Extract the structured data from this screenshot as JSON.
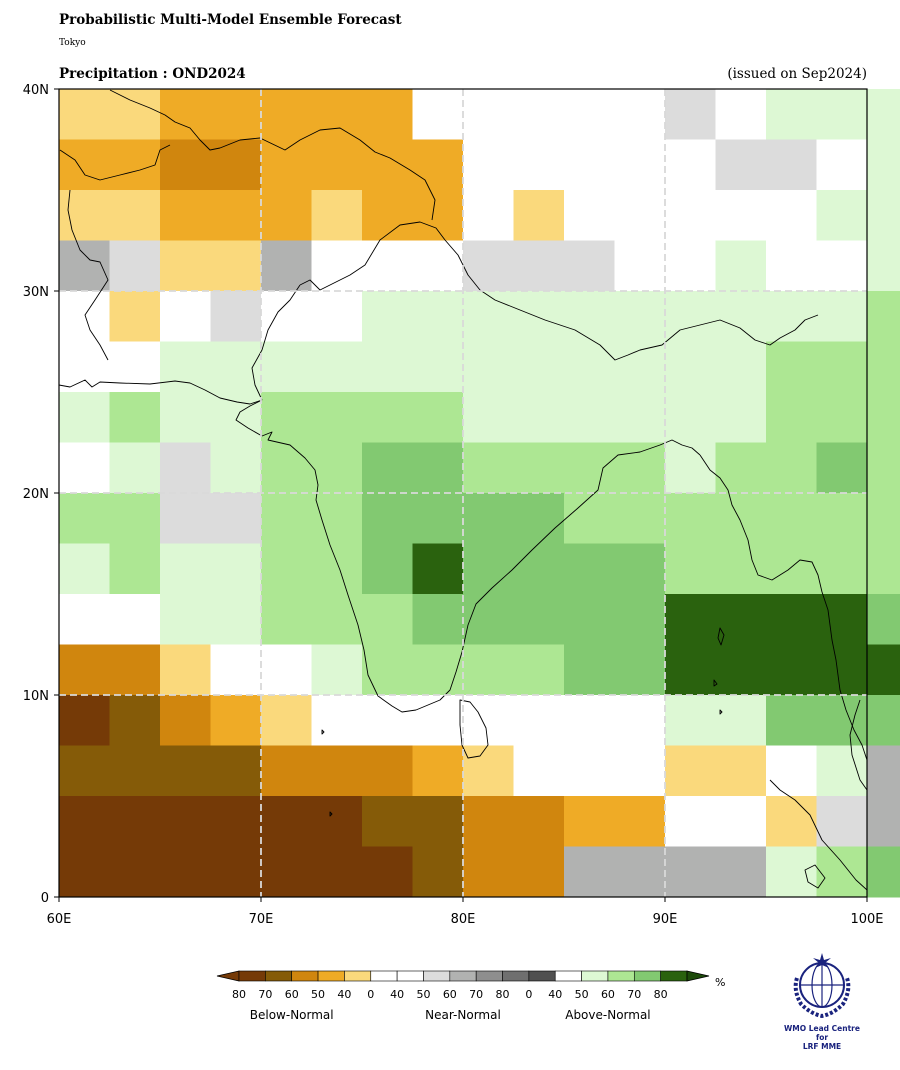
{
  "header": {
    "title": "Probabilistic Multi-Model Ensemble Forecast",
    "subtitle": "Tokyo",
    "variable": "Precipitation : OND2024",
    "issued": "(issued on Sep2024)"
  },
  "map": {
    "lon_range": [
      60,
      100
    ],
    "lat_range": [
      0,
      40
    ],
    "grid_step_deg": 2.5,
    "lon_ticks": [
      "60E",
      "70E",
      "80E",
      "90E",
      "100E"
    ],
    "lat_ticks": [
      "40N",
      "30N",
      "20N",
      "10N",
      "0"
    ],
    "grid_lines": "dashed light grey every 10°",
    "cells_rows_north_to_south": [
      "BBAAAAA.....N.aaaaaa",
      "AACCAAAA.....NN.aaaa",
      "BBAAABAA.B.....aaaab",
      "MNBBM...NNN..a..a..a",
      ".B.N..aaaaaaaaaabbaa",
      "..aaaaaaaaaaaabbbbbb",
      "abaabbbbaaaaaabbbbbb",
      ".aNabbccbbbbabbcbbba",
      "bbNNbbccccbbbbbbbba.",
      "abaabbcdccccbbbbbbba",
      "..aabbbcccccddddccca",
      "CCB..abbbbccdddddddc",
      "EDCAB.......aacccccc",
      "DDDDCCCAB...BB.aM.aa",
      "EEEEEEDDCCAA..BNMNAB",
      "EEEEEEEDCCMMMMabcddd"
    ],
    "cell_legend": {
      "E": "below-normal 80",
      "D": "below-normal 70",
      "C": "below-normal 60",
      "A": "below-normal 50",
      "B": "below-normal 40",
      ".": "near-normal 0",
      "N": "near-normal 40",
      "M": "near-normal 50",
      "a": "above-normal 40",
      "b": "above-normal 50",
      "c": "above-normal 60",
      "d": "above-normal 70"
    },
    "colors": {
      "below": [
        "#fad97c",
        "#efab26",
        "#d0860e",
        "#855b08",
        "#753a07"
      ],
      "near": [
        "#ffffff",
        "#dcdcdc",
        "#b1b2b1",
        "#8e8e8e",
        "#6f6f6f",
        "#505050"
      ],
      "above": [
        "#ffffff",
        "#ddf8d4",
        "#ade793",
        "#82c971",
        "#2a620e",
        "#1d4a0a"
      ]
    }
  },
  "colorbar": {
    "unit": "%",
    "below_labels": [
      "80",
      "70",
      "60",
      "50",
      "40"
    ],
    "near_labels": [
      "0",
      "40",
      "50",
      "60",
      "70",
      "80"
    ],
    "above_labels": [
      "0",
      "40",
      "50",
      "60",
      "70",
      "80"
    ],
    "categories": [
      "Below-Normal",
      "Near-Normal",
      "Above-Normal"
    ]
  },
  "logo": {
    "text_line1": "WMO Lead Centre for",
    "text_line2": "LRF MME"
  }
}
